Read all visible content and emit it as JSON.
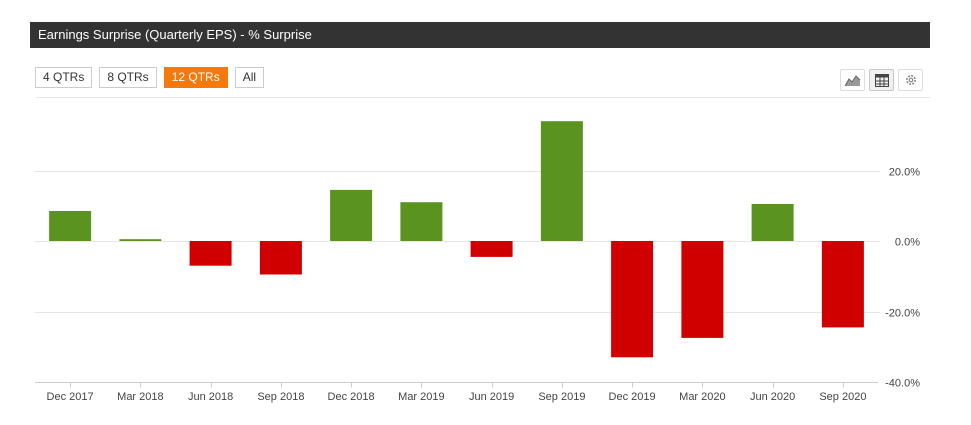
{
  "header": {
    "title": "Earnings Surprise (Quarterly EPS) - % Surprise"
  },
  "range_buttons": [
    {
      "label": "4 QTRs",
      "active": false
    },
    {
      "label": "8 QTRs",
      "active": false
    },
    {
      "label": "12 QTRs",
      "active": true
    },
    {
      "label": "All",
      "active": false
    }
  ],
  "toolbar": {
    "icons": [
      "area-chart-icon",
      "table-icon",
      "gear-icon"
    ]
  },
  "colors": {
    "positive": "#5a9320",
    "negative": "#d10000",
    "active_button": "#f6790b",
    "title_bar": "#333333"
  },
  "chart_data": {
    "type": "bar",
    "title": "Earnings Surprise (Quarterly EPS) - % Surprise",
    "categories": [
      "Dec 2017",
      "Mar 2018",
      "Jun 2018",
      "Sep 2018",
      "Dec 2018",
      "Mar 2019",
      "Jun 2019",
      "Sep 2019",
      "Dec 2019",
      "Mar 2020",
      "Jun 2020",
      "Sep 2020"
    ],
    "series": [
      {
        "values": [
          8.5,
          0.5,
          -7,
          -9.5,
          14.5,
          11,
          -4.5,
          34,
          -33,
          -27.5,
          10.5,
          -24.5
        ]
      }
    ],
    "xlabel": "",
    "ylabel": "",
    "ylim": [
      -40,
      40
    ],
    "yticks": [
      -40,
      -20,
      0,
      20
    ],
    "ytick_labels": [
      "-40.0%",
      "-20.0%",
      "0.0%",
      "20.0%"
    ],
    "y_axis_side": "right",
    "grid": true,
    "legend": "none"
  }
}
